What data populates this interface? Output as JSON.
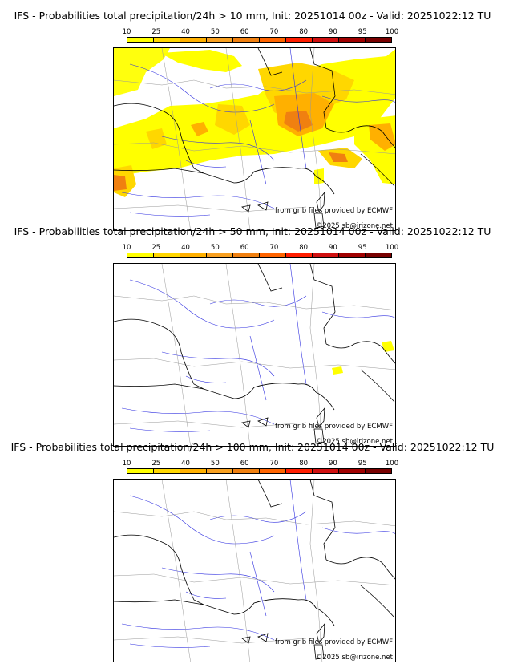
{
  "colorbar": {
    "labels": [
      "10",
      "25",
      "40",
      "50",
      "60",
      "70",
      "80",
      "90",
      "95",
      "100"
    ],
    "colors": [
      "#ffff00",
      "#ffd700",
      "#ffb000",
      "#f8a020",
      "#f08010",
      "#ff6400",
      "#ff1e00",
      "#d01010",
      "#a00000",
      "#780000"
    ]
  },
  "credits": {
    "source": "from grib files provided by ECMWF",
    "copyright": "©2025 sb@irizone.net"
  },
  "panels": [
    {
      "title": "IFS - Probabilities total precipitation/24h > 10 mm, Init: 20251014 00z - Valid: 20251022:12 TU",
      "threshold": "10 mm"
    },
    {
      "title": "IFS - Probabilities total precipitation/24h > 50 mm, Init: 20251014 00z - Valid: 20251022:12 TU",
      "threshold": "50 mm"
    },
    {
      "title": "IFS - Probabilities total precipitation/24h > 100 mm, Init: 20251014 00z - Valid: 20251022:12 TU",
      "threshold": "100 mm"
    }
  ]
}
